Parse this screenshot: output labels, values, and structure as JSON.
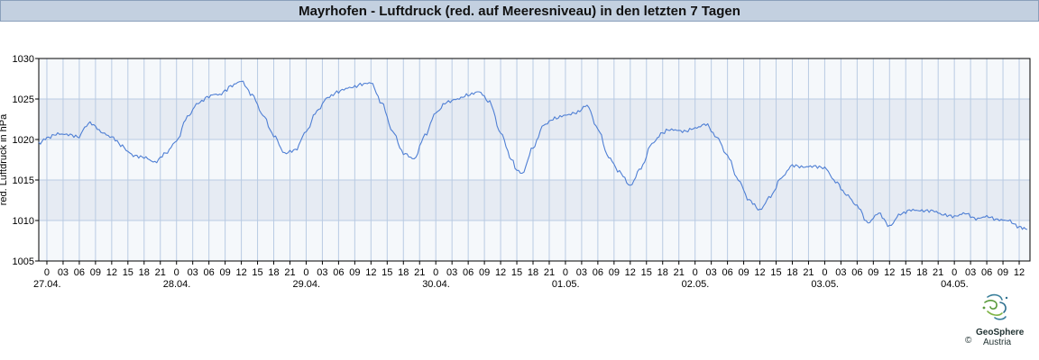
{
  "title": "Mayrhofen - Luftdruck (red. auf Meeresniveau) in den letzten 7 Tagen",
  "logo": {
    "name": "GeoSphere",
    "sub": "Austria",
    "copyright": "©"
  },
  "colors": {
    "line": "#4f7fd4",
    "band": "#e6ebf3",
    "plot_bg": "#f5f8fb",
    "grid": "#b9cbe3",
    "axis": "#000000"
  },
  "chart_data": {
    "type": "line",
    "title": "Mayrhofen - Luftdruck (red. auf Meeresniveau) in den letzten 7 Tagen",
    "ylabel": "red. Luftdruck in hPa",
    "xlabel": "",
    "ylim": [
      1005,
      1030
    ],
    "yticks": [
      1005,
      1010,
      1015,
      1020,
      1025,
      1030
    ],
    "x_unit": "hours since 27.04. 00:00 (local)",
    "x_range": [
      -1.5,
      182
    ],
    "hour_ticks": [
      "0",
      "03",
      "06",
      "09",
      "12",
      "15",
      "18",
      "21",
      "0",
      "03",
      "06",
      "09",
      "12",
      "15",
      "18",
      "21",
      "0",
      "03",
      "06",
      "09",
      "12",
      "15",
      "18",
      "21",
      "0",
      "03",
      "06",
      "09",
      "12",
      "15",
      "18",
      "21",
      "0",
      "03",
      "06",
      "09",
      "12",
      "15",
      "18",
      "21",
      "0",
      "03",
      "06",
      "09",
      "12",
      "15",
      "18",
      "21",
      "0",
      "03",
      "06",
      "09",
      "12",
      "15",
      "18",
      "21",
      "0",
      "03",
      "06",
      "09",
      "12"
    ],
    "date_labels": [
      "27.04.",
      "28.04.",
      "29.04.",
      "30.04.",
      "01.05.",
      "02.05.",
      "03.05.",
      "04.05."
    ],
    "grid": true,
    "series": [
      {
        "x": [
          -1.5,
          0,
          2,
          4,
          6,
          7,
          8,
          9,
          10,
          12,
          14,
          15,
          16,
          18,
          20,
          22,
          24,
          26,
          28,
          30,
          31,
          32,
          33,
          34,
          36,
          38,
          40,
          42,
          44,
          46,
          48,
          50,
          52,
          54,
          55,
          56,
          57,
          58,
          60,
          62,
          64,
          66,
          68,
          70,
          72,
          74,
          76,
          78,
          80,
          82,
          84,
          86,
          87,
          88,
          90,
          92,
          94,
          96,
          98,
          100,
          102,
          104,
          106,
          108,
          110,
          112,
          114,
          115,
          116,
          118,
          120,
          122,
          124,
          126,
          128,
          130,
          132,
          134,
          136,
          138,
          140,
          142,
          144,
          146,
          148,
          150,
          152,
          154,
          156,
          158,
          160,
          162,
          164,
          166,
          168,
          170,
          172,
          174,
          176,
          178,
          180,
          181.5
        ],
        "y": [
          1019.5,
          1020.2,
          1020.7,
          1020.6,
          1020.3,
          1021.5,
          1022.1,
          1021.6,
          1020.9,
          1020.3,
          1019.2,
          1018.5,
          1018.0,
          1017.8,
          1017.2,
          1018.3,
          1019.8,
          1022.8,
          1024.5,
          1025.3,
          1025.6,
          1025.5,
          1026.0,
          1026.6,
          1027.2,
          1025.5,
          1023.0,
          1020.5,
          1018.3,
          1018.7,
          1021.0,
          1023.5,
          1025.2,
          1025.9,
          1026.2,
          1026.4,
          1026.5,
          1026.8,
          1027.0,
          1024.5,
          1021.0,
          1018.3,
          1017.6,
          1020.5,
          1023.3,
          1024.6,
          1025.0,
          1025.5,
          1025.9,
          1024.6,
          1020.8,
          1017.6,
          1016.2,
          1015.8,
          1019.0,
          1021.8,
          1022.6,
          1023.0,
          1023.3,
          1024.2,
          1021.3,
          1017.8,
          1016.0,
          1014.3,
          1016.5,
          1019.5,
          1020.8,
          1021.2,
          1021.2,
          1021.0,
          1021.4,
          1021.9,
          1020.3,
          1018.0,
          1015.0,
          1012.5,
          1011.3,
          1013.0,
          1015.3,
          1016.8,
          1016.6,
          1016.7,
          1016.5,
          1014.8,
          1013.2,
          1011.8,
          1009.7,
          1010.9,
          1009.3,
          1010.8,
          1011.3,
          1011.2,
          1011.2,
          1010.7,
          1010.5,
          1010.9,
          1010.2,
          1010.5,
          1010.1,
          1010.0,
          1009.2,
          1008.9
        ]
      }
    ]
  }
}
